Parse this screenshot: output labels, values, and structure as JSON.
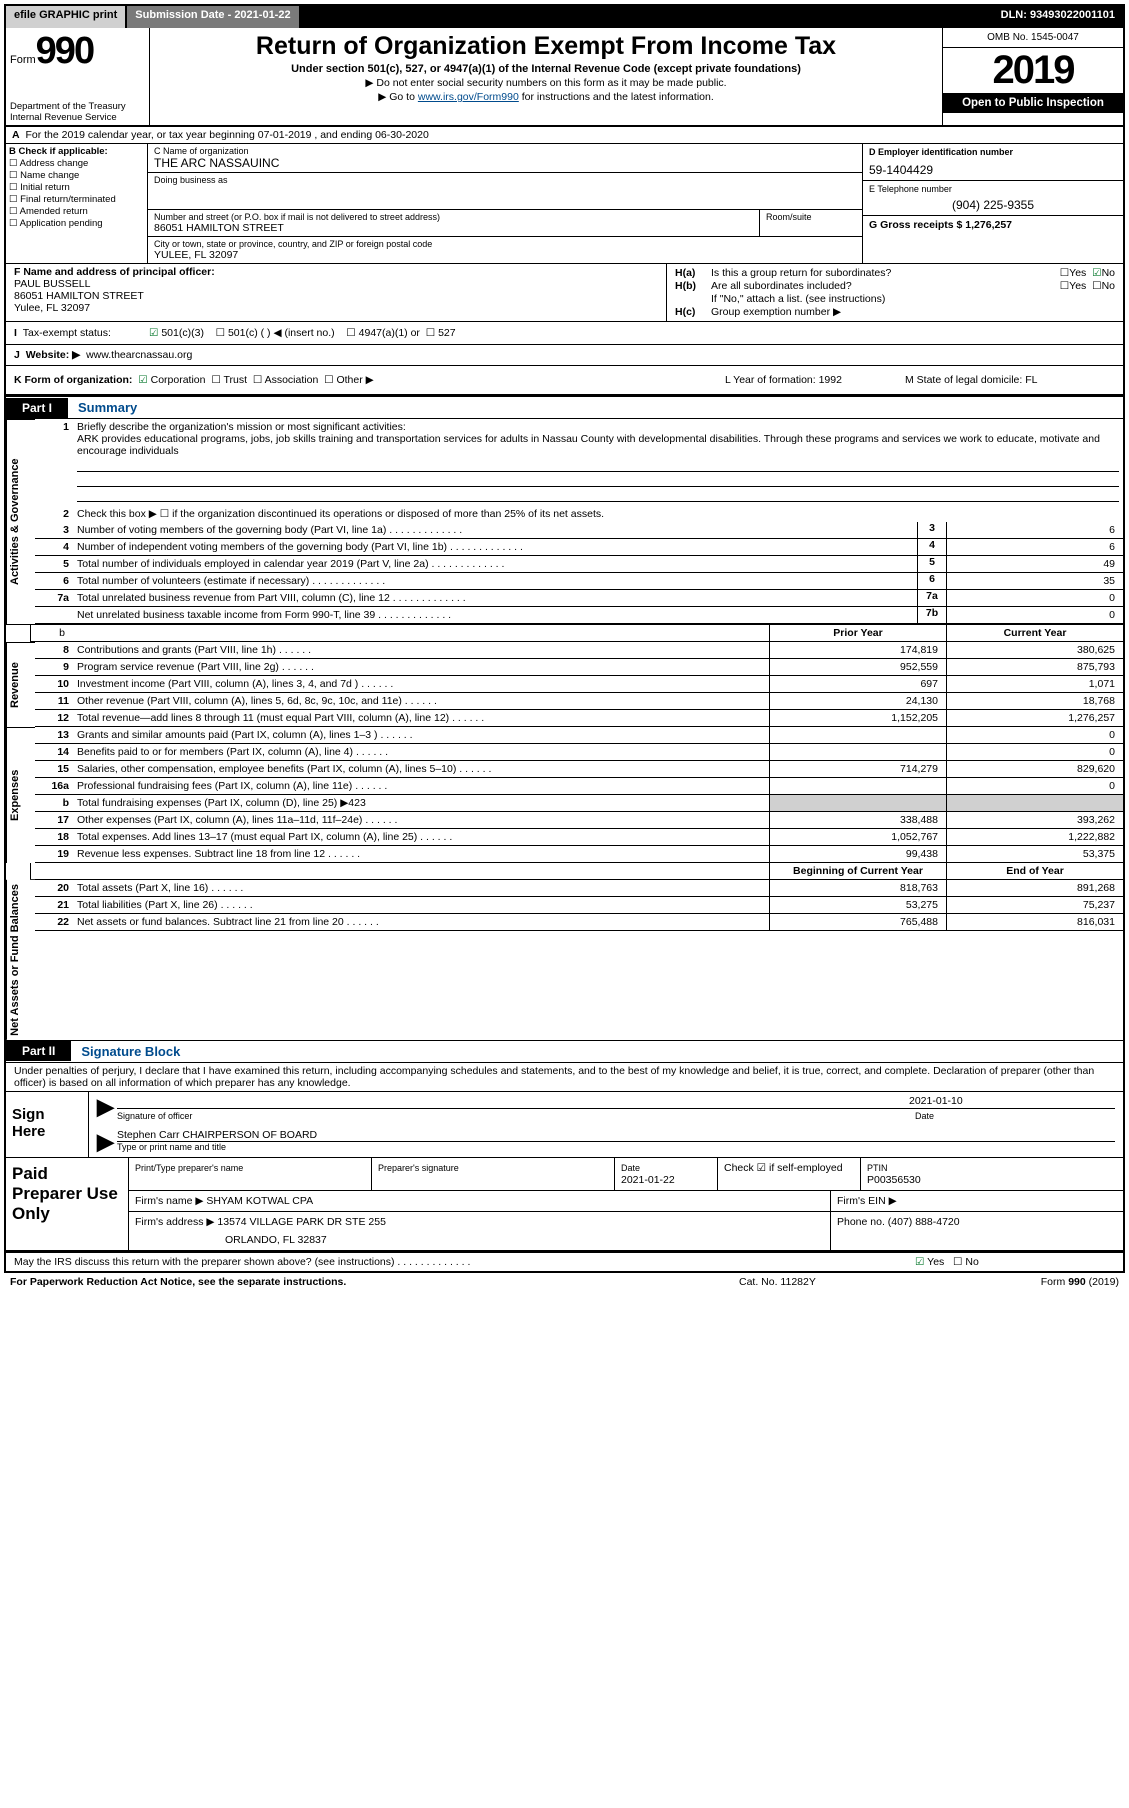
{
  "topbar": {
    "efile": "efile GRAPHIC print",
    "submission_date": "Submission Date - 2021-01-22",
    "dln": "DLN: 93493022001101"
  },
  "header": {
    "form_word": "Form",
    "form_num": "990",
    "dept": "Department of the Treasury",
    "irs": "Internal Revenue Service",
    "title": "Return of Organization Exempt From Income Tax",
    "sub1": "Under section 501(c), 527, or 4947(a)(1) of the Internal Revenue Code (except private foundations)",
    "sub2": "Do not enter social security numbers on this form as it may be made public.",
    "sub3_a": "Go to ",
    "sub3_link": "www.irs.gov/Form990",
    "sub3_b": " for instructions and the latest information.",
    "omb": "OMB No. 1545-0047",
    "year": "2019",
    "open_public": "Open to Public Inspection"
  },
  "rowA": {
    "prefix": "A",
    "text": "For the 2019 calendar year, or tax year beginning 07-01-2019    , and ending 06-30-2020"
  },
  "colB": {
    "title": "B Check if applicable:",
    "items": [
      "Address change",
      "Name change",
      "Initial return",
      "Final return/terminated",
      "Amended return",
      "Application pending"
    ]
  },
  "colC": {
    "name_lbl": "C Name of organization",
    "name": "THE ARC NASSAUINC",
    "dba_lbl": "Doing business as",
    "street_lbl": "Number and street (or P.O. box if mail is not delivered to street address)",
    "street": "86051 HAMILTON STREET",
    "room_lbl": "Room/suite",
    "city_lbl": "City or town, state or province, country, and ZIP or foreign postal code",
    "city": "YULEE, FL  32097"
  },
  "colD": {
    "d_lbl": "D Employer identification number",
    "d_val": "59-1404429",
    "e_lbl": "E Telephone number",
    "e_val": "(904) 225-9355",
    "g_lbl": "G Gross receipts $ 1,276,257"
  },
  "colF": {
    "lbl": "F  Name and address of principal officer:",
    "name": "PAUL BUSSELL",
    "addr1": "86051 HAMILTON STREET",
    "addr2": "Yulee, FL  32097"
  },
  "colH": {
    "ha": "Is this a group return for subordinates?",
    "hb": "Are all subordinates included?",
    "hb_note": "If \"No,\" attach a list. (see instructions)",
    "hc": "Group exemption number ▶"
  },
  "taxex": {
    "lbl": "Tax-exempt status:",
    "c3": "501(c)(3)",
    "c": "501(c) (  ) ◀ (insert no.)",
    "a1": "4947(a)(1) or",
    "s527": "527"
  },
  "rowJ": {
    "lbl": "J",
    "web_lbl": "Website: ▶",
    "web": "www.thearcnassau.org"
  },
  "rowK": {
    "k_lbl": "K Form of organization:",
    "corp": "Corporation",
    "trust": "Trust",
    "assoc": "Association",
    "other": "Other ▶",
    "L": "L Year of formation: 1992",
    "M": "M State of legal domicile: FL"
  },
  "part1": {
    "tag": "Part I",
    "title": "Summary"
  },
  "summary": {
    "q1_lbl": "Briefly describe the organization's mission or most significant activities:",
    "q1_text": "ARK provides educational programs, jobs, job skills training and transportation services for adults in Nassau County with developmental disabilities. Through these programs and services we work to educate, motivate and encourage individuals",
    "q2": "Check this box ▶ ☐  if the organization discontinued its operations or disposed of more than 25% of its net assets.",
    "rows_a": [
      {
        "n": "3",
        "d": "Number of voting members of the governing body (Part VI, line 1a)",
        "nc": "3",
        "v": "6"
      },
      {
        "n": "4",
        "d": "Number of independent voting members of the governing body (Part VI, line 1b)",
        "nc": "4",
        "v": "6"
      },
      {
        "n": "5",
        "d": "Total number of individuals employed in calendar year 2019 (Part V, line 2a)",
        "nc": "5",
        "v": "49"
      },
      {
        "n": "6",
        "d": "Total number of volunteers (estimate if necessary)",
        "nc": "6",
        "v": "35"
      },
      {
        "n": "7a",
        "d": "Total unrelated business revenue from Part VIII, column (C), line 12",
        "nc": "7a",
        "v": "0"
      },
      {
        "n": "",
        "d": "Net unrelated business taxable income from Form 990-T, line 39",
        "nc": "7b",
        "v": "0"
      }
    ],
    "hdr_prior": "Prior Year",
    "hdr_curr": "Current Year",
    "rev": [
      {
        "n": "8",
        "d": "Contributions and grants (Part VIII, line 1h)",
        "p": "174,819",
        "c": "380,625"
      },
      {
        "n": "9",
        "d": "Program service revenue (Part VIII, line 2g)",
        "p": "952,559",
        "c": "875,793"
      },
      {
        "n": "10",
        "d": "Investment income (Part VIII, column (A), lines 3, 4, and 7d )",
        "p": "697",
        "c": "1,071"
      },
      {
        "n": "11",
        "d": "Other revenue (Part VIII, column (A), lines 5, 6d, 8c, 9c, 10c, and 11e)",
        "p": "24,130",
        "c": "18,768"
      },
      {
        "n": "12",
        "d": "Total revenue—add lines 8 through 11 (must equal Part VIII, column (A), line 12)",
        "p": "1,152,205",
        "c": "1,276,257"
      }
    ],
    "exp": [
      {
        "n": "13",
        "d": "Grants and similar amounts paid (Part IX, column (A), lines 1–3 )",
        "p": "",
        "c": "0"
      },
      {
        "n": "14",
        "d": "Benefits paid to or for members (Part IX, column (A), line 4)",
        "p": "",
        "c": "0"
      },
      {
        "n": "15",
        "d": "Salaries, other compensation, employee benefits (Part IX, column (A), lines 5–10)",
        "p": "714,279",
        "c": "829,620"
      },
      {
        "n": "16a",
        "d": "Professional fundraising fees (Part IX, column (A), line 11e)",
        "p": "",
        "c": "0"
      },
      {
        "n": "b",
        "d": "Total fundraising expenses (Part IX, column (D), line 25) ▶423",
        "p": "shade",
        "c": "shade"
      },
      {
        "n": "17",
        "d": "Other expenses (Part IX, column (A), lines 11a–11d, 11f–24e)",
        "p": "338,488",
        "c": "393,262"
      },
      {
        "n": "18",
        "d": "Total expenses. Add lines 13–17 (must equal Part IX, column (A), line 25)",
        "p": "1,052,767",
        "c": "1,222,882"
      },
      {
        "n": "19",
        "d": "Revenue less expenses. Subtract line 18 from line 12",
        "p": "99,438",
        "c": "53,375"
      }
    ],
    "hdr_beg": "Beginning of Current Year",
    "hdr_end": "End of Year",
    "net": [
      {
        "n": "20",
        "d": "Total assets (Part X, line 16)",
        "p": "818,763",
        "c": "891,268"
      },
      {
        "n": "21",
        "d": "Total liabilities (Part X, line 26)",
        "p": "53,275",
        "c": "75,237"
      },
      {
        "n": "22",
        "d": "Net assets or fund balances. Subtract line 21 from line 20",
        "p": "765,488",
        "c": "816,031"
      }
    ]
  },
  "part2": {
    "tag": "Part II",
    "title": "Signature Block"
  },
  "penalties": "Under penalties of perjury, I declare that I have examined this return, including accompanying schedules and statements, and to the best of my knowledge and belief, it is true, correct, and complete. Declaration of preparer (other than officer) is based on all information of which preparer has any knowledge.",
  "sign": {
    "here": "Sign Here",
    "sig_lbl": "Signature of officer",
    "date": "2021-01-10",
    "date_lbl": "Date",
    "name": "Stephen Carr CHAIRPERSON OF BOARD",
    "name_lbl": "Type or print name and title"
  },
  "prep": {
    "title": "Paid Preparer Use Only",
    "r1": {
      "a": "Print/Type preparer's name",
      "b": "Preparer's signature",
      "c_lbl": "Date",
      "c": "2021-01-22",
      "d": "Check ☑ if self-employed",
      "e_lbl": "PTIN",
      "e": "P00356530"
    },
    "r2": {
      "a": "Firm's name    ▶ SHYAM KOTWAL CPA",
      "b": "Firm's EIN ▶"
    },
    "r3": {
      "a": "Firm's address ▶ 13574 VILLAGE PARK DR STE 255",
      "b": "Phone no. (407) 888-4720"
    },
    "r3b": "ORLANDO, FL  32837"
  },
  "discuss": {
    "q": "May the IRS discuss this return with the preparer shown above? (see instructions)",
    "yes": "Yes",
    "no": "No"
  },
  "footer": {
    "l": "For Paperwork Reduction Act Notice, see the separate instructions.",
    "m": "Cat. No. 11282Y",
    "r": "Form 990 (2019)"
  },
  "sides": {
    "ag": "Activities & Governance",
    "rev": "Revenue",
    "exp": "Expenses",
    "net": "Net Assets or Fund Balances"
  }
}
